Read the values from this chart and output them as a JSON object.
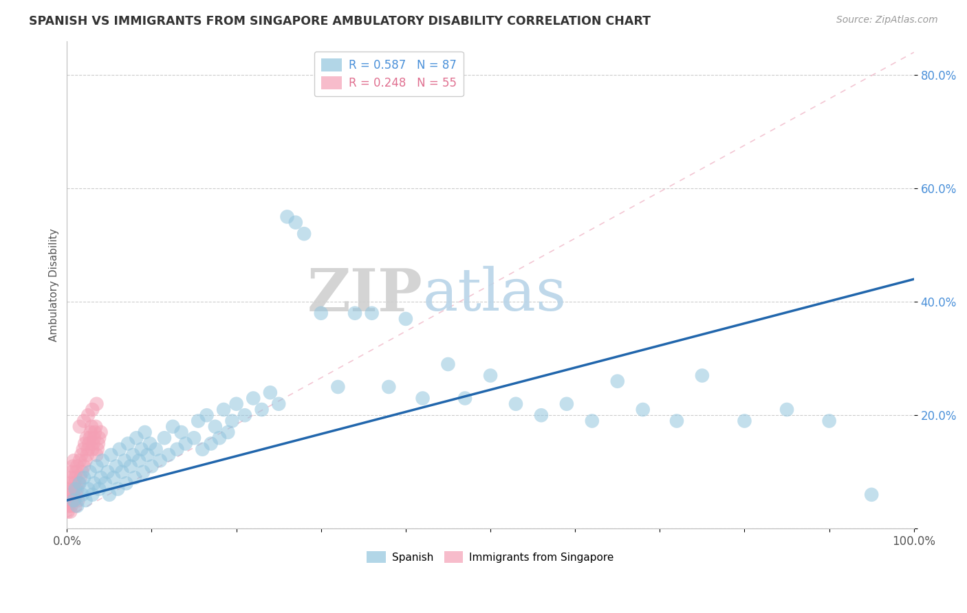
{
  "title": "SPANISH VS IMMIGRANTS FROM SINGAPORE AMBULATORY DISABILITY CORRELATION CHART",
  "source": "Source: ZipAtlas.com",
  "ylabel": "Ambulatory Disability",
  "xlim": [
    0,
    1.0
  ],
  "ylim": [
    0,
    0.86
  ],
  "x_tick_positions": [
    0,
    0.1,
    0.2,
    0.3,
    0.4,
    0.5,
    0.6,
    0.7,
    0.8,
    0.9,
    1.0
  ],
  "x_tick_labels": [
    "0.0%",
    "",
    "",
    "",
    "",
    "",
    "",
    "",
    "",
    "",
    "100.0%"
  ],
  "y_tick_positions": [
    0.0,
    0.2,
    0.4,
    0.6,
    0.8
  ],
  "y_tick_labels": [
    "",
    "20.0%",
    "40.0%",
    "60.0%",
    "80.0%"
  ],
  "legend_r1": "R = 0.587   N = 87",
  "legend_r2": "R = 0.248   N = 55",
  "blue_color": "#92c5de",
  "pink_color": "#f4a0b5",
  "blue_line_color": "#2166ac",
  "pink_line_color": "#f4a0b5",
  "watermark_zip": "ZIP",
  "watermark_atlas": "atlas",
  "blue_scatter_x": [
    0.008,
    0.01,
    0.012,
    0.015,
    0.018,
    0.02,
    0.022,
    0.025,
    0.027,
    0.03,
    0.032,
    0.035,
    0.038,
    0.04,
    0.042,
    0.045,
    0.048,
    0.05,
    0.052,
    0.055,
    0.058,
    0.06,
    0.062,
    0.065,
    0.068,
    0.07,
    0.072,
    0.075,
    0.078,
    0.08,
    0.082,
    0.085,
    0.088,
    0.09,
    0.092,
    0.095,
    0.098,
    0.1,
    0.105,
    0.11,
    0.115,
    0.12,
    0.125,
    0.13,
    0.135,
    0.14,
    0.15,
    0.155,
    0.16,
    0.165,
    0.17,
    0.175,
    0.18,
    0.185,
    0.19,
    0.195,
    0.2,
    0.21,
    0.22,
    0.23,
    0.24,
    0.25,
    0.26,
    0.27,
    0.28,
    0.3,
    0.32,
    0.34,
    0.36,
    0.38,
    0.4,
    0.42,
    0.45,
    0.47,
    0.5,
    0.53,
    0.56,
    0.59,
    0.62,
    0.65,
    0.68,
    0.72,
    0.75,
    0.8,
    0.85,
    0.9,
    0.95
  ],
  "blue_scatter_y": [
    0.05,
    0.07,
    0.04,
    0.08,
    0.06,
    0.09,
    0.05,
    0.07,
    0.1,
    0.06,
    0.08,
    0.11,
    0.07,
    0.09,
    0.12,
    0.08,
    0.1,
    0.06,
    0.13,
    0.09,
    0.11,
    0.07,
    0.14,
    0.1,
    0.12,
    0.08,
    0.15,
    0.11,
    0.13,
    0.09,
    0.16,
    0.12,
    0.14,
    0.1,
    0.17,
    0.13,
    0.15,
    0.11,
    0.14,
    0.12,
    0.16,
    0.13,
    0.18,
    0.14,
    0.17,
    0.15,
    0.16,
    0.19,
    0.14,
    0.2,
    0.15,
    0.18,
    0.16,
    0.21,
    0.17,
    0.19,
    0.22,
    0.2,
    0.23,
    0.21,
    0.24,
    0.22,
    0.55,
    0.54,
    0.52,
    0.38,
    0.25,
    0.38,
    0.38,
    0.25,
    0.37,
    0.23,
    0.29,
    0.23,
    0.27,
    0.22,
    0.2,
    0.22,
    0.19,
    0.26,
    0.21,
    0.19,
    0.27,
    0.19,
    0.21,
    0.19,
    0.06
  ],
  "pink_scatter_x": [
    0.001,
    0.002,
    0.002,
    0.003,
    0.003,
    0.004,
    0.004,
    0.005,
    0.005,
    0.006,
    0.006,
    0.007,
    0.007,
    0.008,
    0.008,
    0.009,
    0.009,
    0.01,
    0.01,
    0.011,
    0.011,
    0.012,
    0.012,
    0.013,
    0.014,
    0.015,
    0.016,
    0.017,
    0.018,
    0.019,
    0.02,
    0.021,
    0.022,
    0.023,
    0.024,
    0.025,
    0.026,
    0.027,
    0.028,
    0.029,
    0.03,
    0.031,
    0.032,
    0.033,
    0.034,
    0.035,
    0.036,
    0.037,
    0.038,
    0.04,
    0.015,
    0.02,
    0.025,
    0.03,
    0.035
  ],
  "pink_scatter_y": [
    0.03,
    0.04,
    0.05,
    0.06,
    0.07,
    0.03,
    0.08,
    0.04,
    0.09,
    0.05,
    0.1,
    0.06,
    0.11,
    0.07,
    0.12,
    0.05,
    0.08,
    0.04,
    0.09,
    0.06,
    0.1,
    0.07,
    0.11,
    0.05,
    0.08,
    0.12,
    0.09,
    0.13,
    0.1,
    0.14,
    0.11,
    0.15,
    0.12,
    0.16,
    0.13,
    0.14,
    0.15,
    0.16,
    0.17,
    0.18,
    0.14,
    0.15,
    0.16,
    0.17,
    0.18,
    0.13,
    0.14,
    0.15,
    0.16,
    0.17,
    0.18,
    0.19,
    0.2,
    0.21,
    0.22
  ],
  "blue_line_x": [
    0.0,
    1.0
  ],
  "blue_line_y": [
    0.05,
    0.44
  ],
  "pink_line_x": [
    0.0,
    1.0
  ],
  "pink_line_y": [
    0.02,
    0.84
  ]
}
